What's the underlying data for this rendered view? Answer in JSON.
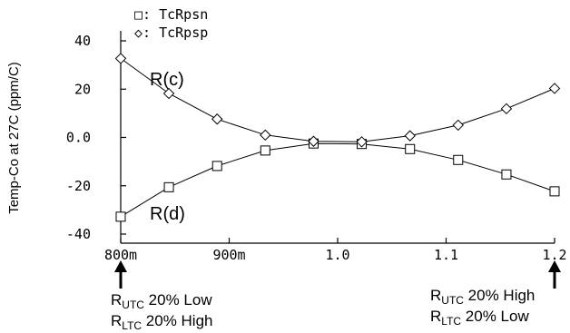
{
  "chart_data": {
    "type": "line",
    "title": "",
    "xlabel": "",
    "ylabel": "Temp-Co at 27C (ppm/C)",
    "xlim": [
      0.8,
      1.2
    ],
    "ylim": [
      -40,
      40
    ],
    "xticks": [
      {
        "value": 0.8,
        "label": "800m"
      },
      {
        "value": 0.9,
        "label": "900m"
      },
      {
        "value": 1.0,
        "label": "1.0"
      },
      {
        "value": 1.1,
        "label": "1.1"
      },
      {
        "value": 1.2,
        "label": "1.2"
      }
    ],
    "yticks": [
      {
        "value": 40,
        "label": "40"
      },
      {
        "value": 20,
        "label": "20"
      },
      {
        "value": 0,
        "label": "0.0"
      },
      {
        "value": -20,
        "label": "-20"
      },
      {
        "value": -40,
        "label": "-40"
      }
    ],
    "legend_position": "top-left",
    "series": [
      {
        "name": "TcRpsn",
        "legend": "□: TcRpsn",
        "marker": "square",
        "x": [
          0.8,
          0.8444,
          0.8889,
          0.9333,
          0.9778,
          1.0222,
          1.0667,
          1.1111,
          1.1556,
          1.2
        ],
        "y": [
          -32.8,
          -20.6,
          -11.8,
          -5.4,
          -2.5,
          -2.7,
          -4.8,
          -9.3,
          -15.3,
          -22.3
        ]
      },
      {
        "name": "TcRpsp",
        "legend": "◇: TcRpsp",
        "marker": "diamond",
        "x": [
          0.8,
          0.8444,
          0.8889,
          0.9333,
          0.9778,
          1.0222,
          1.0667,
          1.1111,
          1.1556,
          1.2
        ],
        "y": [
          32.7,
          18.2,
          7.6,
          1.0,
          -1.6,
          -1.8,
          0.7,
          5.1,
          11.9,
          20.3
        ]
      }
    ],
    "annotations": {
      "curve_c": "R(c)",
      "curve_d": "R(d)",
      "left_note": [
        "RUTC 20% Low",
        "RLTC 20% High"
      ],
      "right_note": [
        "RUTC 20% High",
        "RLTC 20% Low"
      ]
    }
  }
}
